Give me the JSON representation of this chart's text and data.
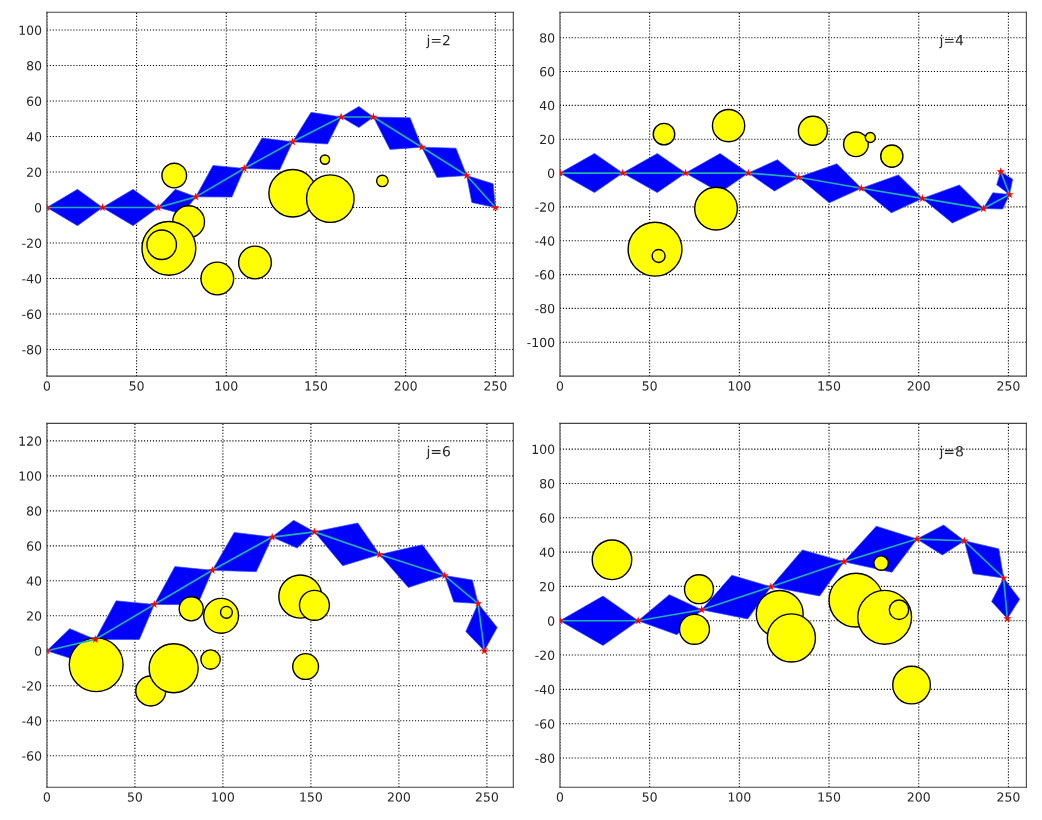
{
  "chart_data": [
    {
      "type": "scatter",
      "xlim": [
        0,
        260
      ],
      "ylim": [
        -95,
        110
      ],
      "xticks": [
        0,
        50,
        100,
        150,
        200,
        250
      ],
      "yticks": [
        -80,
        -60,
        -40,
        -20,
        0,
        20,
        40,
        60,
        80,
        100
      ],
      "grid": true,
      "annotations": [
        "j=2"
      ],
      "series": [
        {
          "type": "line",
          "color": "#20b2aa",
          "marker": "none",
          "x": [
            0,
            31,
            62,
            83,
            110,
            137,
            164,
            182,
            209,
            234,
            250
          ],
          "values": [
            0,
            0,
            0,
            6,
            22,
            37,
            51,
            51,
            34,
            18,
            0
          ]
        },
        {
          "type": "scatter",
          "color": "#ff0000",
          "marker": "star",
          "x": [
            0,
            31,
            62,
            83,
            110,
            137,
            164,
            182,
            209,
            234,
            250
          ],
          "values": [
            0,
            0,
            0,
            6,
            22,
            37,
            51,
            51,
            34,
            18,
            0
          ]
        },
        {
          "type": "bubble",
          "color": "#ffff00",
          "x": [
            71,
            79,
            68,
            64,
            95,
            116,
            137,
            158,
            155,
            187
          ],
          "values": [
            18,
            -8,
            -23,
            -21,
            -40,
            -31,
            8,
            5,
            27,
            15
          ],
          "sizes": [
            0.21,
            0.35,
            1,
            0.3,
            0.37,
            0.37,
            0.78,
            0.78,
            0.03,
            0.045
          ]
        }
      ]
    },
    {
      "type": "scatter",
      "xlim": [
        0,
        260
      ],
      "ylim": [
        -120,
        95
      ],
      "xticks": [
        0,
        50,
        100,
        150,
        200,
        250
      ],
      "yticks": [
        -100,
        -80,
        -60,
        -40,
        -20,
        0,
        20,
        40,
        60,
        80
      ],
      "grid": true,
      "annotations": [
        "j=4"
      ],
      "series": [
        {
          "type": "line",
          "color": "#20b2aa",
          "marker": "none",
          "x": [
            0,
            35,
            70,
            105,
            133,
            168,
            202,
            236,
            250.6,
            245.7
          ],
          "values": [
            0,
            0,
            0,
            0,
            -2.5,
            -9,
            -15,
            -21,
            -12.7,
            0.8
          ]
        },
        {
          "type": "scatter",
          "color": "#ff0000",
          "marker": "star",
          "x": [
            0,
            35,
            70,
            105,
            133,
            168,
            202,
            236,
            250.6,
            245.7
          ],
          "values": [
            0,
            0,
            0,
            0,
            -2.5,
            -9,
            -15,
            -21,
            -12.7,
            0.8
          ]
        },
        {
          "type": "bubble",
          "color": "#ffff00",
          "x": [
            58,
            94,
            141,
            165,
            173,
            185,
            87,
            53,
            55
          ],
          "values": [
            23,
            28,
            25,
            17,
            21,
            10,
            -21,
            -45,
            -49
          ],
          "sizes": [
            0.16,
            0.36,
            0.29,
            0.21,
            0.034,
            0.17,
            0.63,
            1,
            0.058
          ]
        }
      ]
    },
    {
      "type": "scatter",
      "xlim": [
        0,
        265
      ],
      "ylim": [
        -78,
        130
      ],
      "xticks": [
        0,
        50,
        100,
        150,
        200,
        250
      ],
      "yticks": [
        -60,
        -40,
        -20,
        0,
        20,
        40,
        60,
        80,
        100,
        120
      ],
      "grid": true,
      "annotations": [
        "j=6"
      ],
      "series": [
        {
          "type": "line",
          "color": "#20b2aa",
          "marker": "none",
          "x": [
            0,
            27.5,
            61,
            94,
            128,
            152,
            189,
            226,
            245,
            248.5
          ],
          "values": [
            0,
            6.5,
            26.5,
            46,
            65,
            68,
            55,
            43,
            27,
            0
          ]
        },
        {
          "type": "scatter",
          "color": "#ff0000",
          "marker": "star",
          "x": [
            0,
            27.5,
            61,
            94,
            128,
            152,
            189,
            226,
            245,
            248.5
          ],
          "values": [
            0,
            6.5,
            26.5,
            46,
            65,
            68,
            55,
            43,
            27,
            0
          ]
        },
        {
          "type": "bubble",
          "color": "#ffff00",
          "x": [
            28,
            59,
            72,
            82,
            99,
            102,
            93,
            144,
            152,
            147
          ],
          "values": [
            -8,
            -23,
            -10,
            24,
            20,
            22,
            -5,
            31,
            26,
            -9
          ],
          "sizes": [
            1,
            0.31,
            0.83,
            0.2,
            0.42,
            0.048,
            0.13,
            0.64,
            0.31,
            0.23
          ]
        }
      ]
    },
    {
      "type": "scatter",
      "xlim": [
        0,
        260
      ],
      "ylim": [
        -97,
        115
      ],
      "xticks": [
        0,
        50,
        100,
        150,
        200,
        250
      ],
      "yticks": [
        -80,
        -60,
        -40,
        -20,
        0,
        20,
        40,
        60,
        80,
        100
      ],
      "grid": true,
      "annotations": [
        "j=8"
      ],
      "series": [
        {
          "type": "line",
          "color": "#20b2aa",
          "marker": "none",
          "x": [
            0,
            43.6,
            79,
            117.6,
            158.3,
            199,
            225.4,
            247.3,
            249.4
          ],
          "values": [
            0,
            0,
            6.4,
            19.8,
            34.4,
            47.6,
            46.6,
            24.9,
            1.2
          ]
        },
        {
          "type": "scatter",
          "color": "#ff0000",
          "marker": "star",
          "x": [
            0,
            43.6,
            79,
            117.6,
            158.3,
            199,
            225.4,
            247.3,
            249.4
          ],
          "values": [
            0,
            0,
            6.4,
            19.8,
            34.4,
            47.6,
            46.6,
            24.9,
            1.2
          ]
        },
        {
          "type": "bubble",
          "color": "#ffff00",
          "x": [
            29,
            77.5,
            75,
            122.5,
            129,
            165,
            181,
            189,
            179,
            196
          ],
          "values": [
            35.5,
            18.4,
            -5,
            4,
            -10,
            12,
            2,
            6.4,
            33.6,
            -37.5
          ],
          "sizes": [
            0.54,
            0.29,
            0.31,
            0.76,
            0.8,
            1,
            1,
            0.13,
            0.072,
            0.49
          ]
        }
      ]
    }
  ]
}
